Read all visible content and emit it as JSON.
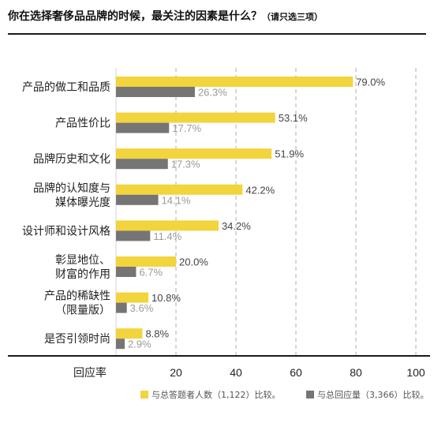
{
  "chart_data": {
    "type": "bar",
    "orientation": "horizontal",
    "title": "你在选择奢侈品品牌的时候，最关注的因素是什么？",
    "title_note": "（请只选三项）",
    "categories": [
      [
        "产品的做工和品质"
      ],
      [
        "产品性价比"
      ],
      [
        "品牌历史和文化"
      ],
      [
        "品牌的认知度与",
        "媒体曝光度"
      ],
      [
        "设计师和设计风格"
      ],
      [
        "彰显地位、",
        "财富的作用"
      ],
      [
        "产品的稀缺性",
        "（限量版）"
      ],
      [
        "是否引领时尚"
      ]
    ],
    "series": [
      {
        "name": "与总答题者人数（1,122）比较。",
        "color": "#F2D43C",
        "label_color": "#444444",
        "values": [
          79.0,
          53.1,
          51.9,
          42.2,
          34.2,
          20.0,
          10.8,
          8.8
        ],
        "value_labels": [
          "79.0%",
          "53.1%",
          "51.9%",
          "42.2%",
          "34.2%",
          "20.0%",
          "10.8%",
          "8.8%"
        ]
      },
      {
        "name": "与总回应量（3,366）比较。",
        "color": "#757575",
        "label_color": "#9a9a9a",
        "values": [
          26.3,
          17.7,
          17.3,
          14.1,
          11.4,
          6.7,
          3.6,
          2.9
        ],
        "value_labels": [
          "26.3%",
          "17.7%",
          "17.3%",
          "14.1%",
          "11.4%",
          "6.7%",
          "3.6%",
          "2.9%"
        ]
      }
    ],
    "xlabel": "回应率",
    "xlim": [
      0,
      100
    ],
    "x_ticks": [
      20,
      40,
      60,
      80,
      100
    ],
    "grid": "vertical dashed",
    "legend_position": "bottom"
  }
}
